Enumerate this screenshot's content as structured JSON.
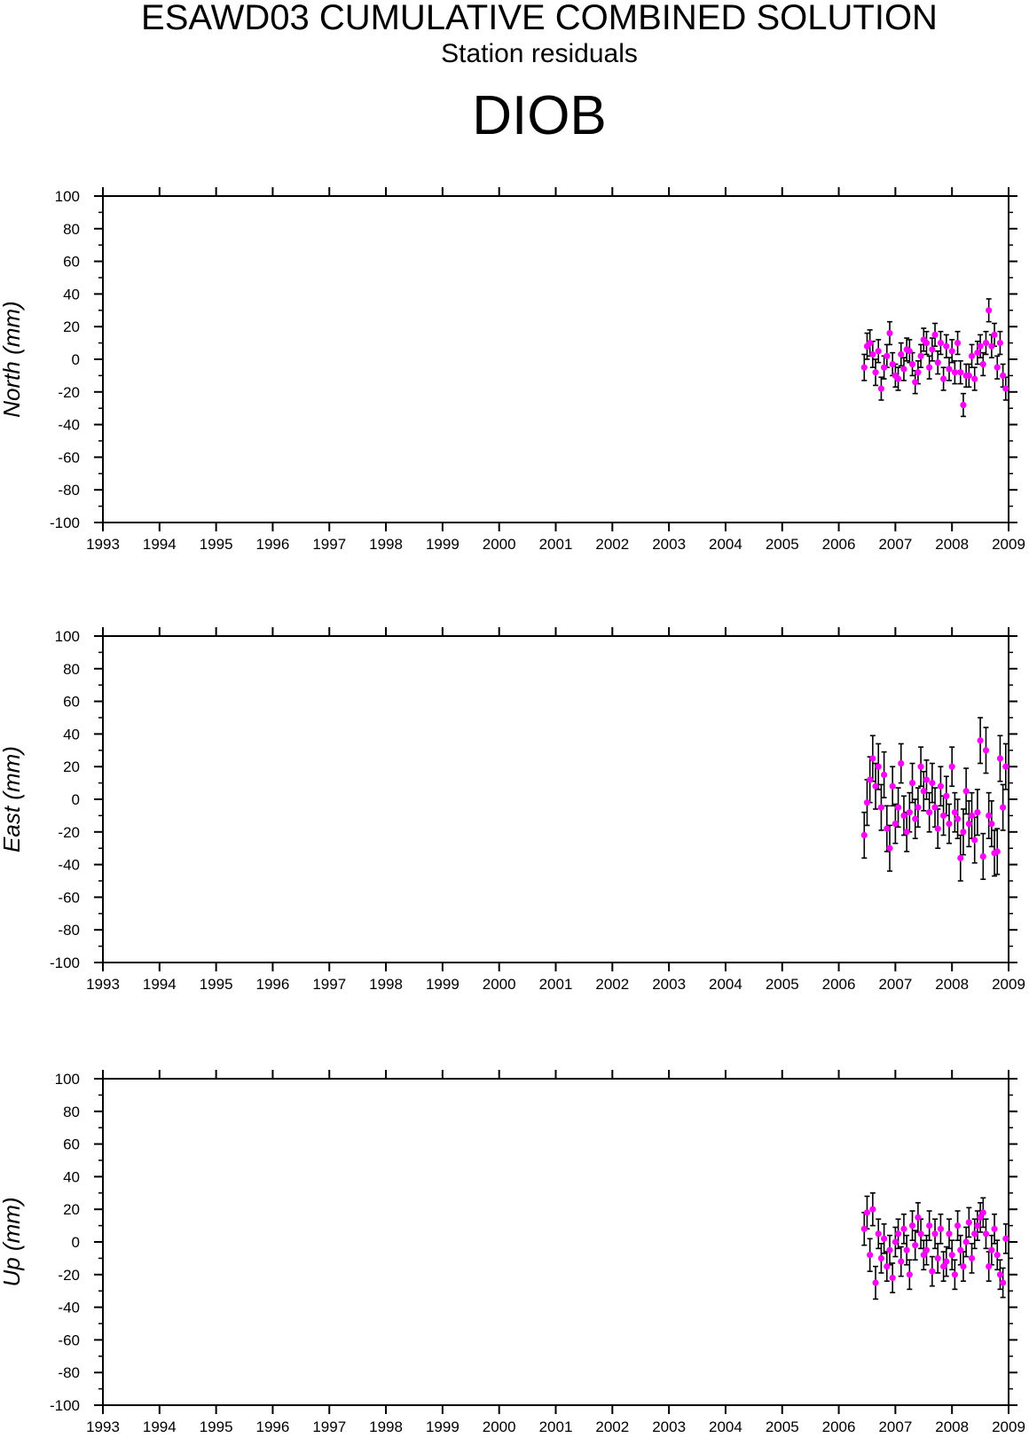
{
  "header": {
    "title": "ESAWD03 CUMULATIVE COMBINED SOLUTION",
    "subtitle": "Station residuals",
    "station": "DIOB"
  },
  "colors": {
    "points": "#ff00ff",
    "error_bars": "#000000",
    "axes": "#000000"
  },
  "chart_data": [
    {
      "type": "scatter",
      "ylabel": "North (mm)",
      "xlim": [
        1993,
        2009
      ],
      "ylim": [
        -100,
        100
      ],
      "xticks": [
        "1993",
        "1994",
        "1995",
        "1996",
        "1997",
        "1998",
        "1999",
        "2000",
        "2001",
        "2002",
        "2003",
        "2004",
        "2005",
        "2006",
        "2007",
        "2008",
        "2009"
      ],
      "yticks": [
        "100",
        "80",
        "60",
        "40",
        "20",
        "0",
        "-20",
        "-40",
        "-60",
        "-80",
        "-100"
      ],
      "x": [
        2006.45,
        2006.5,
        2006.55,
        2006.6,
        2006.65,
        2006.7,
        2006.75,
        2006.8,
        2006.85,
        2006.9,
        2006.95,
        2007.0,
        2007.05,
        2007.1,
        2007.15,
        2007.2,
        2007.25,
        2007.3,
        2007.35,
        2007.4,
        2007.45,
        2007.5,
        2007.55,
        2007.6,
        2007.65,
        2007.7,
        2007.75,
        2007.8,
        2007.85,
        2007.9,
        2007.95,
        2008.0,
        2008.05,
        2008.1,
        2008.15,
        2008.2,
        2008.25,
        2008.3,
        2008.35,
        2008.4,
        2008.45,
        2008.5,
        2008.55,
        2008.6,
        2008.65,
        2008.7,
        2008.75,
        2008.8,
        2008.85,
        2008.9,
        2008.95
      ],
      "y": [
        -5,
        8,
        10,
        3,
        -8,
        5,
        -18,
        -5,
        2,
        16,
        -3,
        -10,
        -12,
        3,
        -6,
        6,
        5,
        -3,
        -14,
        -8,
        2,
        12,
        10,
        -5,
        6,
        15,
        -2,
        10,
        -12,
        8,
        -6,
        5,
        -8,
        10,
        -8,
        -28,
        -10,
        -10,
        2,
        -12,
        4,
        8,
        -3,
        10,
        30,
        8,
        15,
        -5,
        10,
        -10,
        -18
      ],
      "errors": [
        8,
        8,
        8,
        8,
        8,
        7,
        7,
        7,
        7,
        7,
        7,
        7,
        7,
        7,
        7,
        7,
        7,
        7,
        7,
        7,
        7,
        7,
        7,
        7,
        7,
        7,
        7,
        7,
        7,
        7,
        7,
        7,
        7,
        7,
        7,
        7,
        7,
        7,
        7,
        7,
        7,
        7,
        7,
        7,
        7,
        7,
        7,
        7,
        7,
        7,
        7
      ]
    },
    {
      "type": "scatter",
      "ylabel": "East (mm)",
      "xlim": [
        1993,
        2009
      ],
      "ylim": [
        -100,
        100
      ],
      "xticks": [
        "1993",
        "1994",
        "1995",
        "1996",
        "1997",
        "1998",
        "1999",
        "2000",
        "2001",
        "2002",
        "2003",
        "2004",
        "2005",
        "2006",
        "2007",
        "2008",
        "2009"
      ],
      "yticks": [
        "100",
        "80",
        "60",
        "40",
        "20",
        "0",
        "-20",
        "-40",
        "-60",
        "-80",
        "-100"
      ],
      "x": [
        2006.45,
        2006.5,
        2006.55,
        2006.6,
        2006.65,
        2006.7,
        2006.75,
        2006.8,
        2006.85,
        2006.9,
        2006.95,
        2007.0,
        2007.05,
        2007.1,
        2007.15,
        2007.2,
        2007.25,
        2007.3,
        2007.35,
        2007.4,
        2007.45,
        2007.5,
        2007.55,
        2007.6,
        2007.65,
        2007.7,
        2007.75,
        2007.8,
        2007.85,
        2007.9,
        2007.95,
        2008.0,
        2008.05,
        2008.1,
        2008.15,
        2008.2,
        2008.25,
        2008.3,
        2008.35,
        2008.4,
        2008.45,
        2008.5,
        2008.55,
        2008.6,
        2008.65,
        2008.7,
        2008.75,
        2008.8,
        2008.85,
        2008.9,
        2008.95
      ],
      "y": [
        -22,
        -2,
        12,
        25,
        8,
        20,
        -5,
        15,
        -18,
        -30,
        8,
        -15,
        -5,
        22,
        -10,
        -20,
        -8,
        10,
        -12,
        -5,
        20,
        5,
        12,
        -8,
        10,
        -5,
        -18,
        8,
        -10,
        2,
        -15,
        20,
        -8,
        -12,
        -36,
        -20,
        5,
        -15,
        -10,
        -25,
        -8,
        36,
        -35,
        30,
        -10,
        -15,
        -33,
        -32,
        25,
        -5,
        20
      ],
      "errors": [
        14,
        14,
        14,
        14,
        14,
        14,
        14,
        14,
        14,
        14,
        12,
        12,
        12,
        12,
        12,
        12,
        12,
        12,
        12,
        12,
        12,
        12,
        12,
        12,
        12,
        12,
        12,
        12,
        12,
        12,
        12,
        12,
        12,
        12,
        14,
        14,
        14,
        14,
        14,
        14,
        14,
        14,
        14,
        14,
        14,
        14,
        14,
        14,
        14,
        14,
        14
      ]
    },
    {
      "type": "scatter",
      "ylabel": "Up (mm)",
      "xlim": [
        1993,
        2009
      ],
      "ylim": [
        -100,
        100
      ],
      "xticks": [
        "1993",
        "1994",
        "1995",
        "1996",
        "1997",
        "1998",
        "1999",
        "2000",
        "2001",
        "2002",
        "2003",
        "2004",
        "2005",
        "2006",
        "2007",
        "2008",
        "2009"
      ],
      "yticks": [
        "100",
        "80",
        "60",
        "40",
        "20",
        "0",
        "-20",
        "-40",
        "-60",
        "-80",
        "-100"
      ],
      "x": [
        2006.45,
        2006.5,
        2006.55,
        2006.6,
        2006.65,
        2006.7,
        2006.75,
        2006.8,
        2006.85,
        2006.9,
        2006.95,
        2007.0,
        2007.05,
        2007.1,
        2007.15,
        2007.2,
        2007.25,
        2007.3,
        2007.35,
        2007.4,
        2007.45,
        2007.5,
        2007.55,
        2007.6,
        2007.65,
        2007.7,
        2007.75,
        2007.8,
        2007.85,
        2007.9,
        2007.95,
        2008.0,
        2008.05,
        2008.1,
        2008.15,
        2008.2,
        2008.25,
        2008.3,
        2008.35,
        2008.4,
        2008.45,
        2008.5,
        2008.55,
        2008.6,
        2008.65,
        2008.7,
        2008.75,
        2008.8,
        2008.85,
        2008.9,
        2008.95
      ],
      "y": [
        8,
        18,
        -8,
        20,
        -25,
        5,
        -10,
        2,
        -15,
        -5,
        -22,
        0,
        5,
        -12,
        8,
        -5,
        -20,
        10,
        -2,
        15,
        5,
        -8,
        -5,
        10,
        -18,
        5,
        -10,
        8,
        -15,
        -12,
        5,
        -8,
        -20,
        10,
        -5,
        -15,
        0,
        12,
        -10,
        5,
        10,
        15,
        18,
        5,
        -15,
        -5,
        8,
        -8,
        -20,
        -25,
        2
      ],
      "errors": [
        10,
        10,
        10,
        10,
        10,
        9,
        9,
        9,
        9,
        9,
        9,
        9,
        9,
        9,
        9,
        9,
        9,
        9,
        9,
        9,
        9,
        9,
        9,
        9,
        9,
        9,
        9,
        9,
        9,
        9,
        9,
        9,
        9,
        9,
        9,
        9,
        9,
        9,
        9,
        9,
        9,
        9,
        9,
        9,
        9,
        9,
        9,
        9,
        9,
        9,
        9
      ]
    }
  ]
}
